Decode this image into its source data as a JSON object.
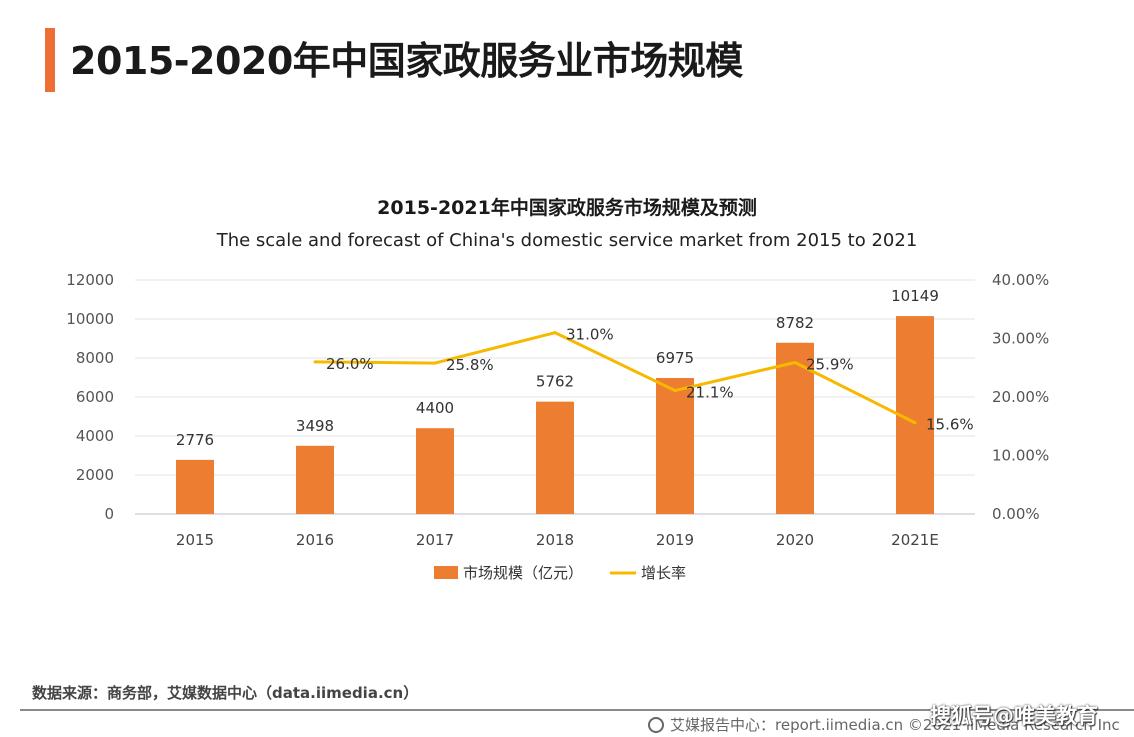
{
  "page": {
    "title": "2015-2020年中国家政服务业市场规模",
    "source": "数据来源：商务部，艾媒数据中心（data.iimedia.cn）",
    "footer": "艾媒报告中心：report.iimedia.cn  ©2021  iiMedia Research  Inc",
    "watermark": "搜狐号@唯美教育",
    "accent_color": "#ed6f35"
  },
  "chart_data": {
    "type": "bar",
    "title": "2015-2021年中国家政服务市场规模及预测",
    "subtitle": "The scale and forecast of China's domestic service market from 2015 to 2021",
    "categories": [
      "2015",
      "2016",
      "2017",
      "2018",
      "2019",
      "2020",
      "2021E"
    ],
    "series": [
      {
        "name": "市场规模（亿元）",
        "type": "bar",
        "axis": "left",
        "color": "#ed7d31",
        "values": [
          2776,
          3498,
          4400,
          5762,
          6975,
          8782,
          10149
        ],
        "labels": [
          "2776",
          "3498",
          "4400",
          "5762",
          "6975",
          "8782",
          "10149"
        ]
      },
      {
        "name": "增长率",
        "type": "line",
        "axis": "right",
        "color": "#f7b900",
        "values": [
          null,
          26.0,
          25.8,
          31.0,
          21.1,
          25.9,
          15.6
        ],
        "labels": [
          "",
          "26.0%",
          "25.8%",
          "31.0%",
          "21.1%",
          "25.9%",
          "15.6%"
        ]
      }
    ],
    "y_left": {
      "lim": [
        0,
        12000
      ],
      "ticks": [
        "0",
        "2000",
        "4000",
        "6000",
        "8000",
        "10000",
        "12000"
      ]
    },
    "y_right": {
      "lim": [
        0,
        40
      ],
      "ticks": [
        "0.00%",
        "10.00%",
        "20.00%",
        "30.00%",
        "40.00%"
      ]
    },
    "grid": true,
    "legend": "bottom-center"
  }
}
